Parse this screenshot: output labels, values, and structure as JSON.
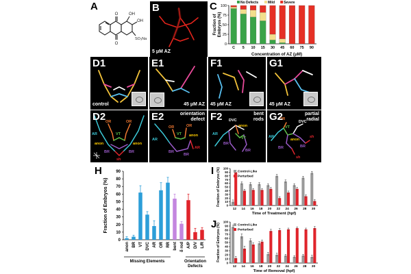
{
  "panels": {
    "a": {
      "label": "A",
      "atoms": [
        "O",
        "OH",
        "OH",
        "SO₃Na",
        "O"
      ]
    },
    "b": {
      "label": "B",
      "caption": "5 μM AZ"
    },
    "c": {
      "label": "C"
    },
    "d1": {
      "label": "D1",
      "caption": "control"
    },
    "e1": {
      "label": "E1",
      "caption": "45 μM AZ"
    },
    "f1": {
      "label": "F1",
      "caption": "45 μM AZ"
    },
    "g1": {
      "label": "G1",
      "caption": "45 μM AZ"
    },
    "d2": {
      "label": "D2"
    },
    "e2": {
      "label": "E2",
      "caption": "orientation\ndefect"
    },
    "f2": {
      "label": "F2",
      "caption": "bent\nrods"
    },
    "g2": {
      "label": "G2",
      "caption": "partial\nradial"
    },
    "h": {
      "label": "H"
    },
    "i": {
      "label": "I"
    },
    "j": {
      "label": "J"
    }
  },
  "d2_labels": [
    "AR",
    "OR",
    "VT",
    "OR",
    "anon",
    "BR",
    "BR",
    "anon",
    "sh"
  ],
  "e2_labels": [
    "AR",
    "OR",
    "VT",
    "OR",
    "BR",
    "anon",
    "BR",
    "AR"
  ],
  "f2_labels": [
    "DVC",
    "AR",
    "anon",
    "VT",
    "BR",
    "BR"
  ],
  "g2_labels": [
    "OR",
    "VT",
    "DVC",
    "AR",
    "anon",
    "BR",
    "BR",
    "sh",
    "sh"
  ],
  "chart_data": [
    {
      "panel": "C",
      "type": "bar",
      "stacked": true,
      "categories": [
        "C",
        "5",
        "10",
        "15",
        "30",
        "45",
        "60",
        "75",
        "90"
      ],
      "series": [
        {
          "name": "No Defects",
          "color": "#3aa348",
          "values": [
            92,
            78,
            70,
            60,
            10,
            3,
            0,
            0,
            0
          ]
        },
        {
          "name": "Mild",
          "color": "#f2de8c",
          "values": [
            4,
            12,
            18,
            22,
            15,
            10,
            0,
            0,
            0
          ]
        },
        {
          "name": "Severe",
          "color": "#e53025",
          "values": [
            4,
            10,
            12,
            18,
            75,
            87,
            100,
            100,
            100
          ]
        }
      ],
      "xlabel": "Concentration of AZ (μM)",
      "ylabel": "Fraction of\nEmbryos (%)",
      "ylim": [
        0,
        100
      ],
      "yticks": [
        0,
        25,
        50,
        75,
        100
      ]
    },
    {
      "panel": "H",
      "type": "bar",
      "categories": [
        "anon",
        "BR",
        "VT",
        "DVC",
        "AR",
        "OR",
        "RR",
        "bent",
        "δ rod",
        "A/P",
        "D/V",
        "L/R"
      ],
      "values": [
        2,
        4,
        62,
        33,
        18,
        65,
        75,
        54,
        21,
        52,
        10,
        13
      ],
      "errors": [
        2,
        2,
        9,
        4,
        7,
        10,
        7,
        6,
        3,
        8,
        5,
        3
      ],
      "colors": [
        "#2c9ed8",
        "#2c9ed8",
        "#2c9ed8",
        "#2c9ed8",
        "#2c9ed8",
        "#2c9ed8",
        "#2c9ed8",
        "#c486df",
        "#c486df",
        "#e0242b",
        "#e0242b",
        "#e0242b"
      ],
      "groups": [
        {
          "label": "Missing Elements",
          "span": [
            0,
            6
          ]
        },
        {
          "label": "Orientation\nDefects",
          "span": [
            9,
            11
          ]
        }
      ],
      "ylabel": "Fraction of Embryos (%)",
      "ylim": [
        0,
        90
      ],
      "yticks": [
        0,
        10,
        20,
        30,
        40,
        50,
        60,
        70,
        80,
        90
      ]
    },
    {
      "panel": "I",
      "type": "bar",
      "categories": [
        "12",
        "14",
        "16",
        "18",
        "20",
        "22",
        "24",
        "26",
        "28",
        "30"
      ],
      "series": [
        {
          "name": "Control-Like",
          "color": "#9a9a9a",
          "values": [
            10,
            60,
            58,
            58,
            55,
            80,
            65,
            55,
            75,
            88
          ]
        },
        {
          "name": "Perturbed",
          "color": "#e0242b",
          "values": [
            90,
            40,
            42,
            42,
            45,
            20,
            35,
            45,
            25,
            12
          ]
        }
      ],
      "errors": [
        5,
        4,
        4,
        4,
        4,
        4,
        4,
        4,
        4,
        4
      ],
      "xlabel": "Time of Treatment (hpf)",
      "ylabel": "Fraction of Embryos (%)",
      "ylim": [
        0,
        100
      ],
      "yticks": [
        0,
        10,
        20,
        30,
        40,
        50,
        60,
        70,
        80,
        90,
        100
      ]
    },
    {
      "panel": "J",
      "type": "bar",
      "categories": [
        "12",
        "14",
        "16",
        "18",
        "20",
        "22",
        "24",
        "26",
        "28",
        "30"
      ],
      "series": [
        {
          "name": "Control-Like",
          "color": "#9a9a9a",
          "values": [
            88,
            65,
            55,
            48,
            22,
            20,
            18,
            15,
            18,
            15
          ]
        },
        {
          "name": "Perturbed",
          "color": "#e0242b",
          "values": [
            12,
            35,
            45,
            52,
            78,
            80,
            82,
            85,
            82,
            85
          ]
        }
      ],
      "errors": [
        4,
        6,
        4,
        4,
        4,
        4,
        3,
        3,
        3,
        4
      ],
      "xlabel": "Time of Removal (hpf)",
      "ylabel": "Fraction of Embryos (%)",
      "ylim": [
        0,
        100
      ],
      "yticks": [
        0,
        10,
        20,
        30,
        40,
        50,
        60,
        70,
        80,
        90,
        100
      ]
    }
  ]
}
